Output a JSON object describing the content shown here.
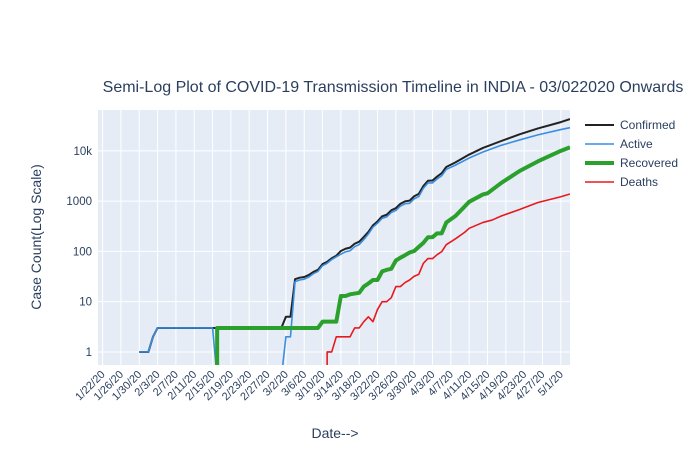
{
  "chart_data": {
    "type": "line",
    "title": "Semi-Log Plot of COVID-19 Transmission Timeline in INDIA - 03/022020 Onwards",
    "xlabel": "Date-->",
    "ylabel": "Case Count(Log Scale)",
    "x_start": "2020-01-22",
    "xlim": [
      "2020-01-21",
      "2020-05-03"
    ],
    "y_scale": "log",
    "ylim": [
      0.55,
      65000
    ],
    "x_tick_labels": [
      "1/22/20",
      "1/26/20",
      "1/30/20",
      "2/3/20",
      "2/7/20",
      "2/11/20",
      "2/15/20",
      "2/19/20",
      "2/23/20",
      "2/27/20",
      "3/2/20",
      "3/6/20",
      "3/10/20",
      "3/14/20",
      "3/18/20",
      "3/22/20",
      "3/26/20",
      "3/30/20",
      "4/3/20",
      "4/7/20",
      "4/11/20",
      "4/15/20",
      "4/19/20",
      "4/23/20",
      "4/27/20",
      "5/1/20"
    ],
    "y_ticks": [
      {
        "value": 1,
        "label": "1"
      },
      {
        "value": 10,
        "label": "10"
      },
      {
        "value": 100,
        "label": "100"
      },
      {
        "value": 1000,
        "label": "1000"
      },
      {
        "value": 10000,
        "label": "10k"
      }
    ],
    "grid": true,
    "legend_position": "top-right",
    "series": [
      {
        "name": "Confirmed",
        "color": "#222222",
        "width": 2,
        "points": [
          [
            "2020-01-30",
            1
          ],
          [
            "2020-02-01",
            1
          ],
          [
            "2020-02-02",
            2
          ],
          [
            "2020-02-03",
            3
          ],
          [
            "2020-03-01",
            3
          ],
          [
            "2020-03-02",
            5
          ],
          [
            "2020-03-03",
            5
          ],
          [
            "2020-03-04",
            28
          ],
          [
            "2020-03-05",
            30
          ],
          [
            "2020-03-06",
            31
          ],
          [
            "2020-03-07",
            34
          ],
          [
            "2020-03-08",
            39
          ],
          [
            "2020-03-09",
            43
          ],
          [
            "2020-03-10",
            56
          ],
          [
            "2020-03-11",
            62
          ],
          [
            "2020-03-12",
            73
          ],
          [
            "2020-03-13",
            82
          ],
          [
            "2020-03-14",
            102
          ],
          [
            "2020-03-15",
            113
          ],
          [
            "2020-03-16",
            119
          ],
          [
            "2020-03-17",
            142
          ],
          [
            "2020-03-18",
            156
          ],
          [
            "2020-03-19",
            194
          ],
          [
            "2020-03-20",
            244
          ],
          [
            "2020-03-21",
            330
          ],
          [
            "2020-03-22",
            396
          ],
          [
            "2020-03-23",
            499
          ],
          [
            "2020-03-24",
            536
          ],
          [
            "2020-03-25",
            657
          ],
          [
            "2020-03-26",
            727
          ],
          [
            "2020-03-27",
            887
          ],
          [
            "2020-03-28",
            987
          ],
          [
            "2020-03-29",
            1024
          ],
          [
            "2020-03-30",
            1251
          ],
          [
            "2020-03-31",
            1397
          ],
          [
            "2020-04-01",
            1998
          ],
          [
            "2020-04-02",
            2543
          ],
          [
            "2020-04-03",
            2567
          ],
          [
            "2020-04-04",
            3082
          ],
          [
            "2020-04-05",
            3588
          ],
          [
            "2020-04-06",
            4778
          ],
          [
            "2020-04-08",
            5916
          ],
          [
            "2020-04-11",
            8446
          ],
          [
            "2020-04-14",
            11438
          ],
          [
            "2020-04-18",
            15712
          ],
          [
            "2020-04-22",
            21370
          ],
          [
            "2020-04-26",
            27890
          ],
          [
            "2020-05-01",
            37336
          ],
          [
            "2020-05-03",
            42836
          ]
        ]
      },
      {
        "name": "Active",
        "color": "#3a8ee0",
        "width": 1.6,
        "points": [
          [
            "2020-01-30",
            1
          ],
          [
            "2020-02-01",
            1
          ],
          [
            "2020-02-02",
            2
          ],
          [
            "2020-02-03",
            3
          ],
          [
            "2020-02-15",
            3
          ],
          [
            "2020-02-16",
            0.3
          ],
          [
            "2020-03-01",
            0.3
          ],
          [
            "2020-03-02",
            2
          ],
          [
            "2020-03-03",
            2
          ],
          [
            "2020-03-04",
            25
          ],
          [
            "2020-03-05",
            27
          ],
          [
            "2020-03-06",
            28
          ],
          [
            "2020-03-07",
            31
          ],
          [
            "2020-03-08",
            36
          ],
          [
            "2020-03-09",
            40
          ],
          [
            "2020-03-10",
            52
          ],
          [
            "2020-03-11",
            58
          ],
          [
            "2020-03-12",
            69
          ],
          [
            "2020-03-13",
            78
          ],
          [
            "2020-03-14",
            88
          ],
          [
            "2020-03-15",
            98
          ],
          [
            "2020-03-16",
            103
          ],
          [
            "2020-03-17",
            124
          ],
          [
            "2020-03-18",
            137
          ],
          [
            "2020-03-19",
            172
          ],
          [
            "2020-03-20",
            222
          ],
          [
            "2020-03-21",
            303
          ],
          [
            "2020-03-22",
            364
          ],
          [
            "2020-03-23",
            455
          ],
          [
            "2020-03-24",
            486
          ],
          [
            "2020-03-25",
            592
          ],
          [
            "2020-03-26",
            654
          ],
          [
            "2020-03-27",
            799
          ],
          [
            "2020-03-28",
            887
          ],
          [
            "2020-03-29",
            905
          ],
          [
            "2020-03-30",
            1113
          ],
          [
            "2020-03-31",
            1238
          ],
          [
            "2020-04-01",
            1803
          ],
          [
            "2020-04-02",
            2301
          ],
          [
            "2020-04-03",
            2300
          ],
          [
            "2020-04-04",
            2768
          ],
          [
            "2020-04-05",
            3200
          ],
          [
            "2020-04-06",
            4267
          ],
          [
            "2020-04-08",
            5200
          ],
          [
            "2020-04-11",
            7200
          ],
          [
            "2020-04-14",
            9500
          ],
          [
            "2020-04-18",
            12900
          ],
          [
            "2020-04-22",
            16500
          ],
          [
            "2020-04-26",
            20800
          ],
          [
            "2020-05-01",
            26500
          ],
          [
            "2020-05-03",
            29000
          ]
        ]
      },
      {
        "name": "Recovered",
        "color": "#2ca02c",
        "width": 4,
        "points": [
          [
            "2020-02-16",
            0.3
          ],
          [
            "2020-02-16",
            3
          ],
          [
            "2020-03-09",
            3
          ],
          [
            "2020-03-10",
            4
          ],
          [
            "2020-03-13",
            4
          ],
          [
            "2020-03-14",
            13
          ],
          [
            "2020-03-15",
            13
          ],
          [
            "2020-03-16",
            14
          ],
          [
            "2020-03-18",
            15
          ],
          [
            "2020-03-19",
            20
          ],
          [
            "2020-03-20",
            23
          ],
          [
            "2020-03-21",
            27
          ],
          [
            "2020-03-22",
            27
          ],
          [
            "2020-03-23",
            40
          ],
          [
            "2020-03-24",
            43
          ],
          [
            "2020-03-25",
            45
          ],
          [
            "2020-03-26",
            66
          ],
          [
            "2020-03-27",
            75
          ],
          [
            "2020-03-28",
            84
          ],
          [
            "2020-03-29",
            95
          ],
          [
            "2020-03-30",
            102
          ],
          [
            "2020-03-31",
            123
          ],
          [
            "2020-04-01",
            148
          ],
          [
            "2020-04-02",
            191
          ],
          [
            "2020-04-03",
            192
          ],
          [
            "2020-04-04",
            229
          ],
          [
            "2020-04-05",
            229
          ],
          [
            "2020-04-06",
            375
          ],
          [
            "2020-04-08",
            506
          ],
          [
            "2020-04-11",
            969
          ],
          [
            "2020-04-14",
            1359
          ],
          [
            "2020-04-15",
            1432
          ],
          [
            "2020-04-18",
            2300
          ],
          [
            "2020-04-22",
            3975
          ],
          [
            "2020-04-26",
            6185
          ],
          [
            "2020-05-01",
            10018
          ],
          [
            "2020-05-03",
            11775
          ]
        ]
      },
      {
        "name": "Deaths",
        "color": "#e8191d",
        "width": 1.6,
        "points": [
          [
            "2020-03-11",
            0.5
          ],
          [
            "2020-03-11",
            1
          ],
          [
            "2020-03-12",
            1
          ],
          [
            "2020-03-13",
            2
          ],
          [
            "2020-03-16",
            2
          ],
          [
            "2020-03-17",
            3
          ],
          [
            "2020-03-18",
            3
          ],
          [
            "2020-03-19",
            4
          ],
          [
            "2020-03-20",
            5
          ],
          [
            "2020-03-21",
            4
          ],
          [
            "2020-03-22",
            7
          ],
          [
            "2020-03-23",
            10
          ],
          [
            "2020-03-24",
            10
          ],
          [
            "2020-03-25",
            12
          ],
          [
            "2020-03-26",
            20
          ],
          [
            "2020-03-27",
            20
          ],
          [
            "2020-03-28",
            24
          ],
          [
            "2020-03-29",
            27
          ],
          [
            "2020-03-30",
            32
          ],
          [
            "2020-03-31",
            35
          ],
          [
            "2020-04-01",
            58
          ],
          [
            "2020-04-02",
            72
          ],
          [
            "2020-04-03",
            72
          ],
          [
            "2020-04-04",
            86
          ],
          [
            "2020-04-05",
            99
          ],
          [
            "2020-04-06",
            136
          ],
          [
            "2020-04-08",
            178
          ],
          [
            "2020-04-10",
            239
          ],
          [
            "2020-04-11",
            288
          ],
          [
            "2020-04-14",
            377
          ],
          [
            "2020-04-16",
            420
          ],
          [
            "2020-04-18",
            507
          ],
          [
            "2020-04-22",
            681
          ],
          [
            "2020-04-26",
            939
          ],
          [
            "2020-05-01",
            1223
          ],
          [
            "2020-05-03",
            1389
          ]
        ]
      }
    ]
  }
}
